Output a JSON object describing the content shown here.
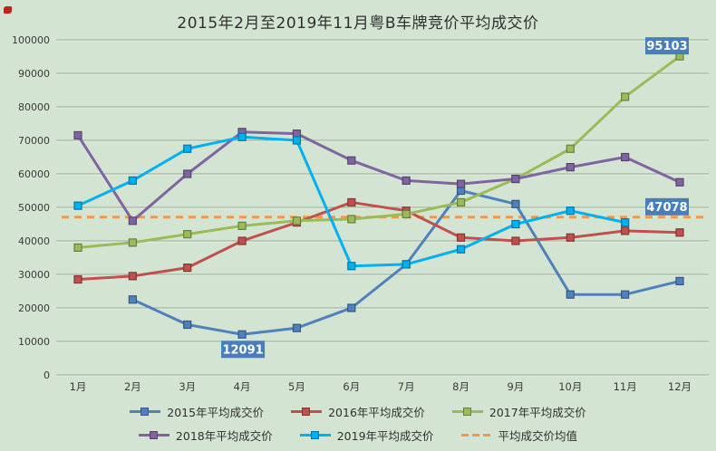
{
  "title": "2015年2月至2019年11月粤B车牌竞价平均成交价",
  "colors": {
    "background": "#d3e5d2",
    "gridline": "#9aa89a",
    "axis_text": "#3a3a3a",
    "title_text": "#2f2f2f",
    "label_box": "#4a7ebb",
    "label_text": "#ffffff"
  },
  "chart_data": {
    "type": "line",
    "title": "2015年2月至2019年11月粤B车牌竞价平均成交价",
    "categories": [
      "1月",
      "2月",
      "3月",
      "4月",
      "5月",
      "6月",
      "7月",
      "8月",
      "9月",
      "10月",
      "11月",
      "12月"
    ],
    "xlabel": "",
    "ylabel": "",
    "y_axis": {
      "min": 0,
      "max": 100000,
      "step": 10000,
      "tick_labels": [
        "0",
        "10000",
        "20000",
        "30000",
        "40000",
        "50000",
        "60000",
        "70000",
        "80000",
        "90000",
        "100000"
      ]
    },
    "grid": true,
    "legend_position": "bottom",
    "series": [
      {
        "name": "2015年平均成交价",
        "color": "#4f81bd",
        "style": "solid",
        "values": [
          null,
          22500,
          15000,
          12091,
          14000,
          20000,
          33000,
          55000,
          51000,
          24000,
          24000,
          28000
        ]
      },
      {
        "name": "2016年平均成交价",
        "color": "#c0504d",
        "style": "solid",
        "values": [
          28500,
          29500,
          32000,
          40000,
          45500,
          51500,
          49000,
          41000,
          40000,
          41000,
          43000,
          42500
        ]
      },
      {
        "name": "2017年平均成交价",
        "color": "#9bbb59",
        "style": "solid",
        "values": [
          38000,
          39500,
          42000,
          44500,
          46000,
          46500,
          48000,
          51500,
          58500,
          67500,
          83000,
          95103
        ]
      },
      {
        "name": "2018年平均成交价",
        "color": "#8064a2",
        "style": "solid",
        "values": [
          71500,
          46000,
          60000,
          72500,
          72000,
          64000,
          58000,
          57000,
          58500,
          62000,
          65000,
          57500
        ]
      },
      {
        "name": "2019年平均成交价",
        "color": "#00b0f0",
        "style": "solid",
        "values": [
          50500,
          58000,
          67500,
          71000,
          70000,
          32500,
          33000,
          37500,
          45000,
          49000,
          45500,
          null
        ]
      },
      {
        "name": "平均成交价均值",
        "color": "#f79646",
        "style": "dashed",
        "constant": 47078,
        "values": [
          47078,
          47078,
          47078,
          47078,
          47078,
          47078,
          47078,
          47078,
          47078,
          47078,
          47078,
          47078
        ]
      }
    ],
    "annotations": [
      {
        "text": "12091",
        "month": "4月",
        "value": 12091,
        "placement": "below"
      },
      {
        "text": "95103",
        "month": "12月",
        "value": 95103,
        "placement": "above"
      },
      {
        "text": "47078",
        "month": "12月",
        "value": 47078,
        "placement": "above"
      }
    ]
  }
}
